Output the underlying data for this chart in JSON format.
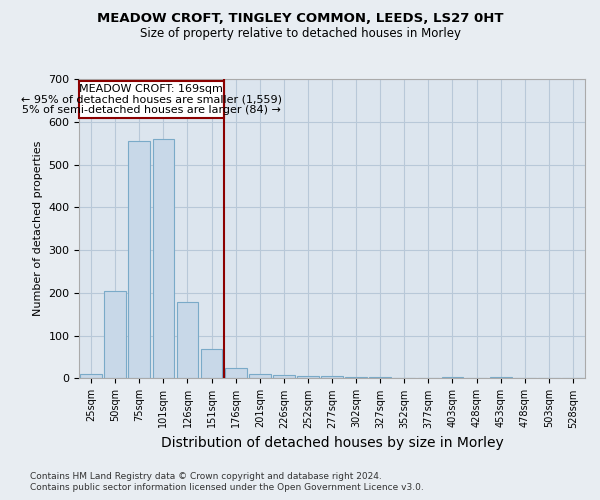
{
  "title1": "MEADOW CROFT, TINGLEY COMMON, LEEDS, LS27 0HT",
  "title2": "Size of property relative to detached houses in Morley",
  "xlabel": "Distribution of detached houses by size in Morley",
  "ylabel": "Number of detached properties",
  "annotation_line1": "MEADOW CROFT: 169sqm",
  "annotation_line2": "← 95% of detached houses are smaller (1,559)",
  "annotation_line3": "5% of semi-detached houses are larger (84) →",
  "footnote1": "Contains HM Land Registry data © Crown copyright and database right 2024.",
  "footnote2": "Contains public sector information licensed under the Open Government Licence v3.0.",
  "bar_labels": [
    "25sqm",
    "50sqm",
    "75sqm",
    "101sqm",
    "126sqm",
    "151sqm",
    "176sqm",
    "201sqm",
    "226sqm",
    "252sqm",
    "277sqm",
    "302sqm",
    "327sqm",
    "352sqm",
    "377sqm",
    "403sqm",
    "428sqm",
    "453sqm",
    "478sqm",
    "503sqm",
    "528sqm"
  ],
  "bar_values": [
    10,
    205,
    555,
    560,
    178,
    70,
    25,
    10,
    7,
    5,
    5,
    3,
    3,
    2,
    0,
    3,
    0,
    4,
    0,
    0,
    0
  ],
  "bar_color": "#c8d8e8",
  "bar_edge_color": "#7aaac8",
  "marker_bar_index": 6,
  "marker_color": "#8b0000",
  "ylim": [
    0,
    700
  ],
  "yticks": [
    0,
    100,
    200,
    300,
    400,
    500,
    600,
    700
  ],
  "background_color": "#e8edf2",
  "plot_bg_color": "#dce5ee",
  "grid_color": "#b8c8d8",
  "title1_fontsize": 9.5,
  "title2_fontsize": 8.5,
  "xlabel_fontsize": 10,
  "ylabel_fontsize": 8,
  "tick_fontsize": 7,
  "annotation_fontsize": 8,
  "footnote_fontsize": 6.5
}
